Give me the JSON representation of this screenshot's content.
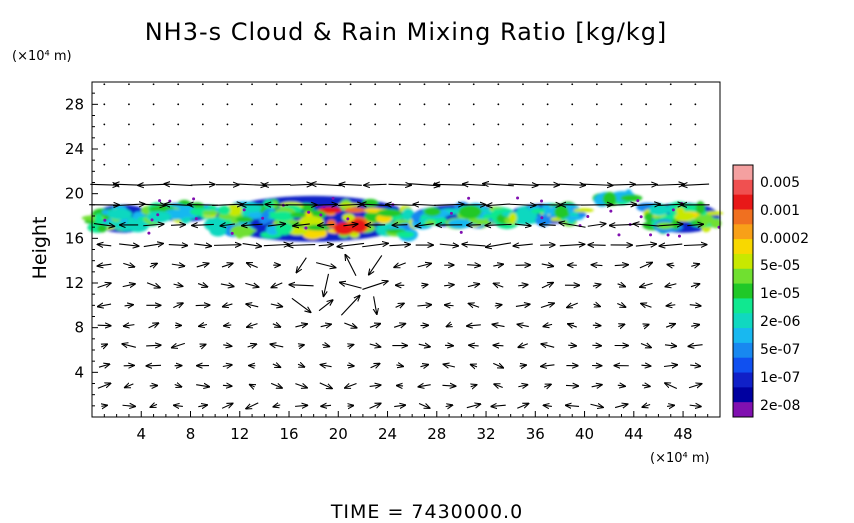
{
  "chart_data": {
    "type": "heatmap",
    "title": "NH3-s Cloud & Rain Mixing Ratio [kg/kg]",
    "xlabel": "",
    "ylabel": "Height",
    "x_unit": "(×10⁴ m)",
    "y_unit": "(×10⁴ m)",
    "xlim": [
      0,
      51
    ],
    "ylim": [
      0,
      30
    ],
    "x_ticks": [
      4,
      8,
      12,
      16,
      20,
      24,
      28,
      32,
      36,
      40,
      44,
      48
    ],
    "y_ticks": [
      4,
      8,
      12,
      16,
      20,
      24,
      28
    ],
    "colorbar": {
      "labels": [
        "0.005",
        "0.001",
        "0.0002",
        "5e-05",
        "1e-05",
        "2e-06",
        "5e-07",
        "1e-07",
        "2e-08"
      ],
      "colors": [
        "#f4a0a0",
        "#f05050",
        "#e81818",
        "#f07020",
        "#f8a018",
        "#f8d800",
        "#c8e800",
        "#70e030",
        "#20c828",
        "#10e890",
        "#10d8c0",
        "#18b8f0",
        "#1888f0",
        "#1050f0",
        "#1020c8",
        "#0000a0",
        "#8010b0"
      ]
    },
    "cloud_layers": [
      {
        "x_range": [
          0,
          5
        ],
        "y_range": [
          16.5,
          19.0
        ]
      },
      {
        "x_range": [
          5,
          10
        ],
        "y_range": [
          17.5,
          19.2
        ]
      },
      {
        "x_range": [
          10,
          26
        ],
        "y_range": [
          15.7,
          19.8
        ]
      },
      {
        "x_range": [
          26,
          34
        ],
        "y_range": [
          17.0,
          19.0
        ]
      },
      {
        "x_range": [
          34,
          40
        ],
        "y_range": [
          17.3,
          19.1
        ]
      },
      {
        "x_range": [
          41,
          44
        ],
        "y_range": [
          19.2,
          20.0
        ]
      },
      {
        "x_range": [
          45,
          51
        ],
        "y_range": [
          16.5,
          19.2
        ]
      }
    ],
    "grid": false,
    "legend": "right",
    "time_label": "TIME = 7430000.0"
  }
}
